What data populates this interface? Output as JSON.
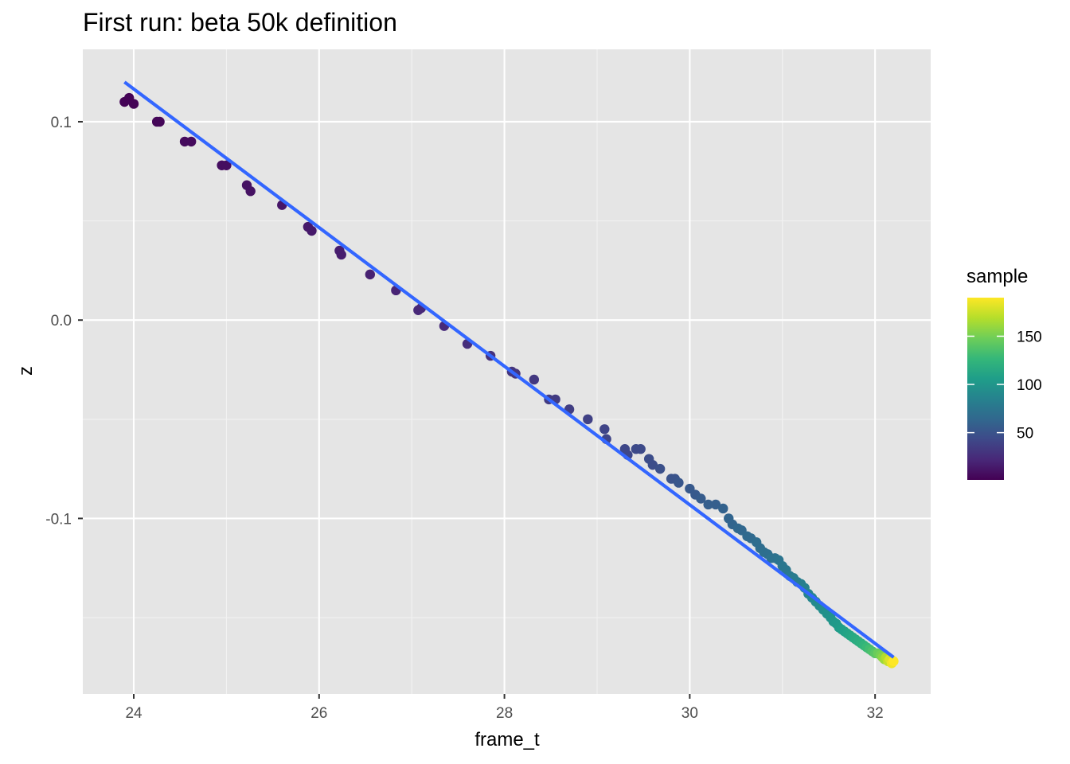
{
  "chart_data": {
    "type": "scatter",
    "title": "First run: beta 50k definition",
    "xlabel": "frame_t",
    "ylabel": "z",
    "xlim": [
      23.45,
      32.6
    ],
    "ylim": [
      -0.1885,
      0.1365
    ],
    "x_ticks": [
      24,
      26,
      28,
      30,
      32
    ],
    "x_tick_labels": [
      "24",
      "26",
      "28",
      "30",
      "32"
    ],
    "y_ticks": [
      -0.1,
      0.0,
      0.1
    ],
    "y_tick_labels": [
      "-0.1",
      "0.0",
      "0.1"
    ],
    "grid": true,
    "legend": {
      "title": "sample",
      "position": "right",
      "type": "colorbar",
      "range": [
        1,
        190
      ],
      "ticks": [
        50,
        100,
        150
      ],
      "tick_labels": [
        "50",
        "100",
        "150"
      ],
      "palette": "viridis"
    },
    "colors": {
      "panel_background": "#e5e5e5",
      "grid_major": "#ffffff",
      "grid_minor": "#f2f2f2",
      "fit_line": "#3366ff",
      "palette_stops": [
        "#440154",
        "#482878",
        "#3e4989",
        "#31688e",
        "#26828e",
        "#1f9e89",
        "#35b779",
        "#6ece58",
        "#b5de2b",
        "#fde725"
      ]
    },
    "fit_line": {
      "type": "linear",
      "x": [
        23.9,
        32.2
      ],
      "y": [
        0.12,
        -0.17
      ]
    },
    "series": [
      {
        "x": [
          23.9,
          23.95,
          24.0,
          24.25,
          24.28,
          24.55,
          24.62,
          24.95,
          25.0,
          25.22,
          25.26,
          25.6,
          25.88,
          25.92,
          26.22,
          26.24,
          26.55,
          26.83,
          27.07,
          27.1,
          27.35,
          27.6,
          27.85,
          28.08,
          28.12,
          28.32,
          28.48,
          28.55,
          28.7,
          28.9,
          29.08,
          29.1,
          29.3,
          29.33,
          29.42,
          29.47,
          29.56,
          29.6,
          29.68,
          29.8,
          29.84,
          29.88,
          30.0,
          30.06,
          30.12,
          30.2,
          30.28,
          30.36,
          30.42,
          30.46,
          30.52,
          30.56,
          30.62,
          30.66,
          30.72,
          30.76,
          30.8,
          30.84,
          30.88,
          30.92,
          30.96,
          31.0,
          31.04,
          31.08,
          31.12,
          31.16,
          31.2,
          31.24,
          31.28,
          31.32,
          31.36,
          31.4,
          31.44,
          31.48,
          31.52,
          31.55,
          31.58,
          31.61,
          31.64,
          31.67,
          31.7,
          31.73,
          31.76,
          31.79,
          31.82,
          31.85,
          31.88,
          31.91,
          31.94,
          31.97,
          32.0,
          32.03,
          32.06,
          32.08,
          32.1,
          32.12,
          32.14,
          32.16,
          32.18,
          32.2
        ],
        "y": [
          0.11,
          0.112,
          0.109,
          0.1,
          0.1,
          0.09,
          0.09,
          0.078,
          0.078,
          0.068,
          0.065,
          0.058,
          0.047,
          0.045,
          0.035,
          0.033,
          0.023,
          0.015,
          0.005,
          0.006,
          -0.003,
          -0.012,
          -0.018,
          -0.026,
          -0.027,
          -0.03,
          -0.04,
          -0.04,
          -0.045,
          -0.05,
          -0.055,
          -0.06,
          -0.065,
          -0.068,
          -0.065,
          -0.065,
          -0.07,
          -0.073,
          -0.075,
          -0.08,
          -0.08,
          -0.082,
          -0.085,
          -0.088,
          -0.09,
          -0.093,
          -0.093,
          -0.095,
          -0.1,
          -0.103,
          -0.105,
          -0.106,
          -0.109,
          -0.11,
          -0.112,
          -0.115,
          -0.117,
          -0.118,
          -0.12,
          -0.12,
          -0.121,
          -0.124,
          -0.126,
          -0.129,
          -0.13,
          -0.132,
          -0.133,
          -0.135,
          -0.138,
          -0.14,
          -0.142,
          -0.144,
          -0.146,
          -0.148,
          -0.15,
          -0.152,
          -0.153,
          -0.155,
          -0.156,
          -0.157,
          -0.158,
          -0.159,
          -0.16,
          -0.161,
          -0.162,
          -0.163,
          -0.164,
          -0.165,
          -0.166,
          -0.167,
          -0.168,
          -0.168,
          -0.169,
          -0.17,
          -0.171,
          -0.17,
          -0.172,
          -0.171,
          -0.173,
          -0.172
        ],
        "color_values": [
          2,
          2,
          2,
          4,
          4,
          6,
          6,
          8,
          8,
          10,
          10,
          12,
          14,
          14,
          16,
          16,
          18,
          20,
          22,
          22,
          24,
          26,
          28,
          30,
          30,
          32,
          34,
          34,
          36,
          38,
          40,
          40,
          42,
          42,
          44,
          44,
          46,
          46,
          48,
          50,
          50,
          52,
          54,
          54,
          56,
          58,
          58,
          60,
          62,
          62,
          64,
          64,
          66,
          66,
          68,
          68,
          70,
          70,
          72,
          72,
          74,
          76,
          76,
          78,
          80,
          80,
          82,
          84,
          86,
          88,
          90,
          92,
          94,
          96,
          98,
          100,
          102,
          104,
          106,
          108,
          110,
          112,
          114,
          116,
          118,
          120,
          124,
          128,
          132,
          136,
          140,
          146,
          150,
          156,
          162,
          168,
          174,
          180,
          186,
          190
        ]
      }
    ]
  }
}
